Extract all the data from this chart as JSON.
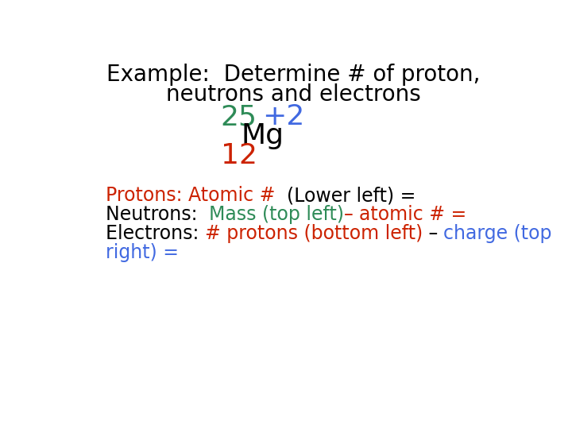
{
  "title_line1": "Example:  Determine # of proton,",
  "title_line2": "neutrons and electrons",
  "title_color": "#000000",
  "title_fontsize": 20,
  "mass_number": "25",
  "mass_color": "#2e8b57",
  "charge": "+2",
  "charge_color": "#4169e1",
  "element": "Mg",
  "element_color": "#000000",
  "atomic_number": "12",
  "atomic_color": "#cc2200",
  "symbol_fontsize": 26,
  "protons_line": [
    {
      "text": "Protons: Atomic #",
      "color": "#cc2200"
    },
    {
      "text": "  (Lower left) = ",
      "color": "#000000"
    }
  ],
  "neutrons_line": [
    {
      "text": "Neutrons:  ",
      "color": "#000000"
    },
    {
      "text": "Mass (top left)",
      "color": "#2e8b57"
    },
    {
      "text": "– ",
      "color": "#cc2200"
    },
    {
      "text": "atomic # = ",
      "color": "#cc2200"
    }
  ],
  "electrons_line1": [
    {
      "text": "Electrons: ",
      "color": "#000000"
    },
    {
      "text": "# protons (bottom left)",
      "color": "#cc2200"
    },
    {
      "text": " – ",
      "color": "#000000"
    },
    {
      "text": "charge (top",
      "color": "#4169e1"
    }
  ],
  "electrons_line2": [
    {
      "text": "right) = ",
      "color": "#4169e1"
    }
  ],
  "body_fontsize": 17,
  "bg_color": "#ffffff"
}
